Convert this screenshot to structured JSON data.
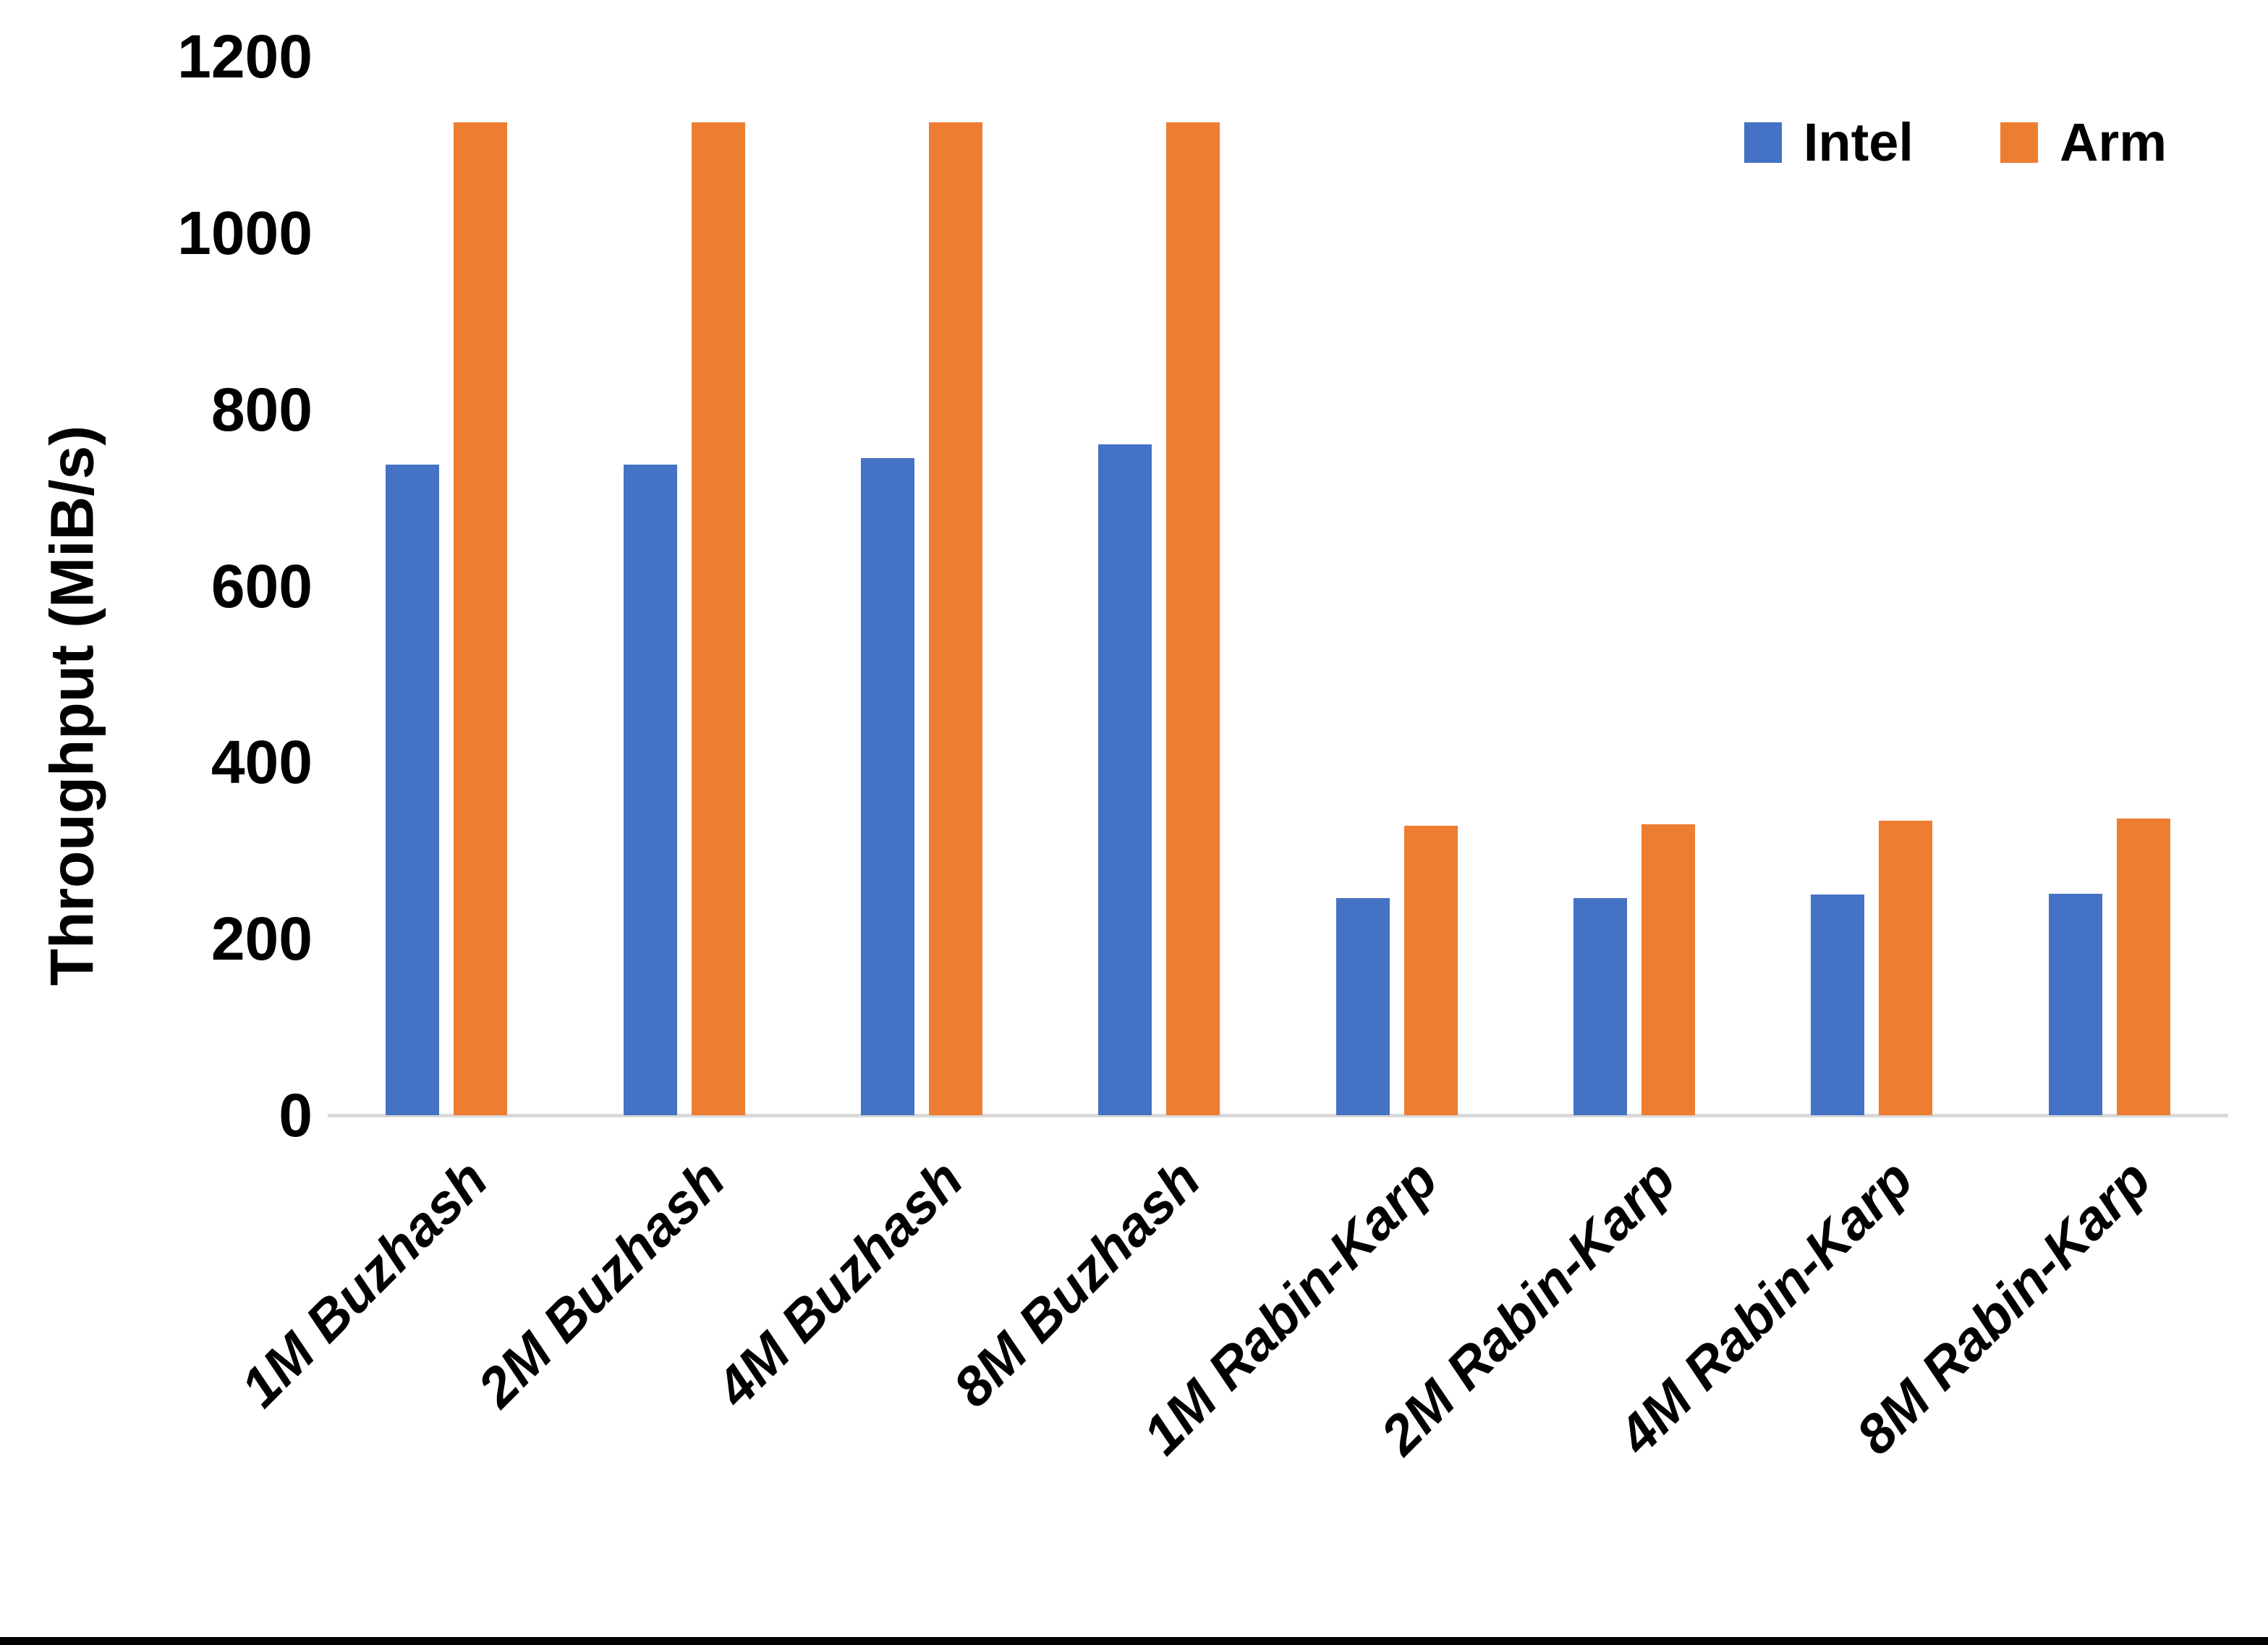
{
  "chart_data": {
    "type": "bar",
    "title": "",
    "ylabel": "Throughput (MiB/s)",
    "xlabel": "",
    "categories": [
      "1M Buzhash",
      "2M Buzhash",
      "4M Buzhash",
      "8M Buzhash",
      "1M Rabin-Karp",
      "2M Rabin-Karp",
      "4M Rabin-Karp",
      "8M Rabin-Karp"
    ],
    "series": [
      {
        "name": "Intel",
        "color": "#4472C4",
        "values": [
          737,
          737,
          745,
          760,
          246,
          246,
          250,
          251
        ]
      },
      {
        "name": "Arm",
        "color": "#ED7D31",
        "values": [
          1125,
          1125,
          1125,
          1125,
          328,
          330,
          334,
          336
        ]
      }
    ],
    "ylim": [
      0,
      1200
    ],
    "yticks": [
      0,
      200,
      400,
      600,
      800,
      1000,
      1200
    ],
    "grid": false,
    "legend_position": "top-right",
    "axis_line_color": "#D9D9D9",
    "background_color": "#FFFFFF",
    "bottom_border_color": "#000000"
  }
}
